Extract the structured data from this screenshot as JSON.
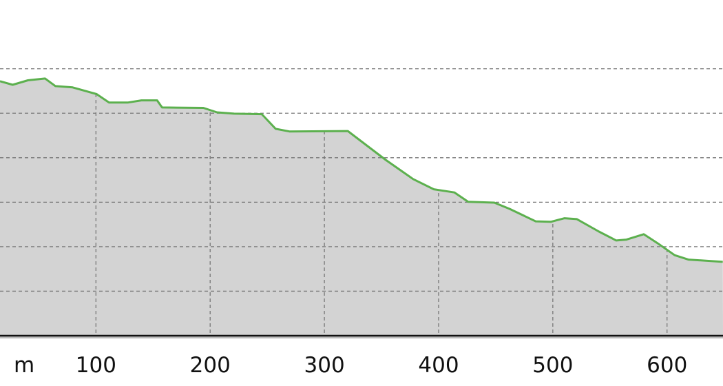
{
  "chart_data": {
    "type": "area",
    "title": "",
    "xlabel": "",
    "ylabel": "",
    "x_unit_label": "m",
    "x_ticks": [
      100,
      200,
      300,
      400,
      500,
      600
    ],
    "xlim": [
      16,
      649
    ],
    "ylim": [
      0,
      6.6
    ],
    "y_gridlines": [
      1,
      2,
      3,
      4,
      5,
      6
    ],
    "grid": true,
    "colors": {
      "line": "#5cb04e",
      "fill": "#d3d3d3",
      "grid": "#777777",
      "axis": "#111111"
    },
    "points": [
      [
        16,
        5.72
      ],
      [
        27.1,
        5.64
      ],
      [
        40.4,
        5.74
      ],
      [
        55.5,
        5.78
      ],
      [
        64.5,
        5.61
      ],
      [
        79.6,
        5.58
      ],
      [
        100.6,
        5.43
      ],
      [
        111.5,
        5.24
      ],
      [
        127.7,
        5.24
      ],
      [
        139.8,
        5.29
      ],
      [
        153.6,
        5.29
      ],
      [
        157.9,
        5.13
      ],
      [
        194,
        5.12
      ],
      [
        206,
        5.02
      ],
      [
        221,
        4.99
      ],
      [
        245.2,
        4.98
      ],
      [
        257.3,
        4.65
      ],
      [
        269.3,
        4.59
      ],
      [
        320.5,
        4.6
      ],
      [
        353.7,
        3.95
      ],
      [
        377.7,
        3.52
      ],
      [
        395.8,
        3.29
      ],
      [
        413.9,
        3.22
      ],
      [
        425.9,
        3.01
      ],
      [
        448.8,
        2.99
      ],
      [
        462.1,
        2.85
      ],
      [
        485,
        2.57
      ],
      [
        498.2,
        2.56
      ],
      [
        510.3,
        2.64
      ],
      [
        521.1,
        2.62
      ],
      [
        540.4,
        2.34
      ],
      [
        555.5,
        2.14
      ],
      [
        564.5,
        2.16
      ],
      [
        579.6,
        2.28
      ],
      [
        591.6,
        2.08
      ],
      [
        606.7,
        1.81
      ],
      [
        618.7,
        1.71
      ],
      [
        648.8,
        1.66
      ]
    ]
  }
}
